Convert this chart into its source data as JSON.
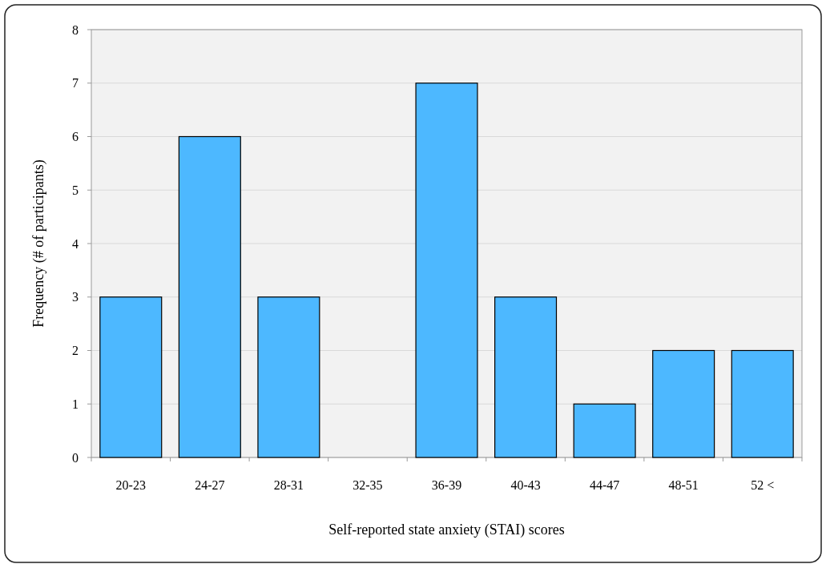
{
  "chart_data": {
    "type": "bar",
    "xlabel": "Self-reported state anxiety (STAI) scores",
    "ylabel": "Frequency (# of participants)",
    "categories": [
      "20-23",
      "24-27",
      "28-31",
      "32-35",
      "36-39",
      "40-43",
      "44-47",
      "48-51",
      "52 <"
    ],
    "values": [
      3,
      6,
      3,
      0,
      7,
      3,
      1,
      2,
      2
    ],
    "color": "#4db8ff",
    "ylim": [
      0,
      8
    ],
    "yticks": [
      0,
      1,
      2,
      3,
      4,
      5,
      6,
      7,
      8
    ],
    "grid": "y"
  }
}
